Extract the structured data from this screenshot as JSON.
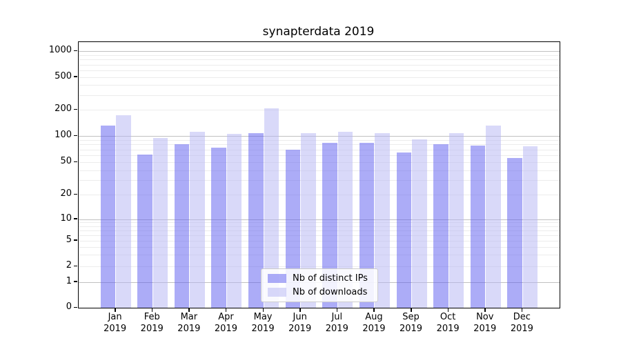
{
  "chart_data": {
    "type": "bar",
    "title": "synapterdata 2019",
    "xlabel": "",
    "ylabel": "",
    "y_scale": "log-with-zero (symlog-like)",
    "y_ticks": [
      0,
      1,
      2,
      5,
      10,
      20,
      50,
      100,
      200,
      500,
      1000
    ],
    "ylim": [
      0,
      1280
    ],
    "grid": "horizontal major (powers of 10) + minor log lines",
    "legend_position": "bottom-center-inside",
    "categories": [
      {
        "month": "Jan",
        "year": "2019"
      },
      {
        "month": "Feb",
        "year": "2019"
      },
      {
        "month": "Mar",
        "year": "2019"
      },
      {
        "month": "Apr",
        "year": "2019"
      },
      {
        "month": "May",
        "year": "2019"
      },
      {
        "month": "Jun",
        "year": "2019"
      },
      {
        "month": "Jul",
        "year": "2019"
      },
      {
        "month": "Aug",
        "year": "2019"
      },
      {
        "month": "Sep",
        "year": "2019"
      },
      {
        "month": "Oct",
        "year": "2019"
      },
      {
        "month": "Nov",
        "year": "2019"
      },
      {
        "month": "Dec",
        "year": "2019"
      }
    ],
    "series": [
      {
        "name": "Nb of distinct IPs",
        "color": "#adadf8",
        "bar_fill": "rgba(90,90,240,0.5)",
        "values": [
          131,
          61,
          80,
          74,
          107,
          70,
          83,
          83,
          65,
          80,
          77,
          56
        ]
      },
      {
        "name": "Nb of downloads",
        "color": "#dadaf9",
        "bar_fill": "rgba(180,180,243,0.5)",
        "values": [
          174,
          94,
          112,
          106,
          209,
          107,
          112,
          107,
          92,
          108,
          133,
          76
        ]
      }
    ]
  }
}
